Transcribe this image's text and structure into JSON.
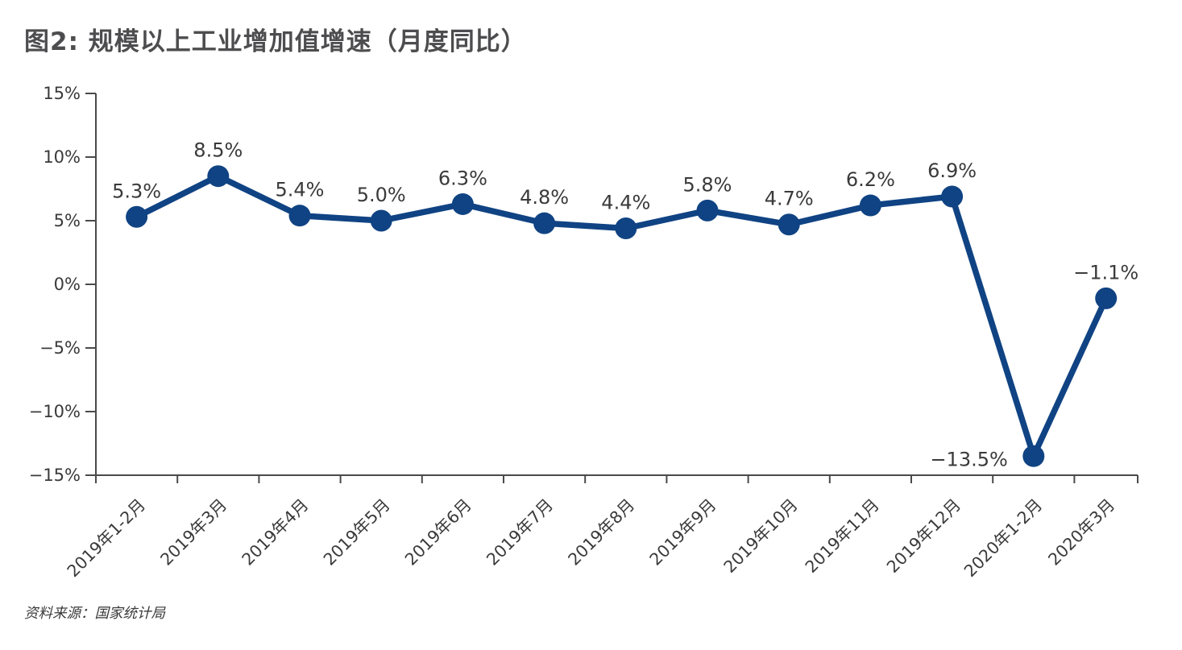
{
  "page": {
    "title": "图2: 规模以上工业增加值增速（月度同比）",
    "source": "资料来源：国家统计局"
  },
  "colors": {
    "line": "#104383",
    "marker": "#104383",
    "title_text": "#4d4d4f",
    "axis": "#4a4a4a",
    "tick_text": "#3a3a3a",
    "data_label_text": "#3a3a3a"
  },
  "chart_data": {
    "type": "line",
    "title": "规模以上工业增加值增速（月度同比）",
    "categories": [
      "2019年1-2月",
      "2019年3月",
      "2019年4月",
      "2019年5月",
      "2019年6月",
      "2019年7月",
      "2019年8月",
      "2019年9月",
      "2019年10月",
      "2019年11月",
      "2019年12月",
      "2020年1-2月",
      "2020年3月"
    ],
    "values": [
      5.3,
      8.5,
      5.4,
      5.0,
      6.3,
      4.8,
      4.4,
      5.8,
      4.7,
      6.2,
      6.9,
      -13.5,
      -1.1
    ],
    "point_labels": [
      "5.3%",
      "8.5%",
      "5.4%",
      "5.0%",
      "6.3%",
      "4.8%",
      "4.4%",
      "5.8%",
      "4.7%",
      "6.2%",
      "6.9%",
      "−13.5%",
      "−1.1%"
    ],
    "label_positions": [
      "above",
      "above",
      "above",
      "above",
      "above",
      "above",
      "above",
      "above",
      "above",
      "above",
      "above",
      "left",
      "above"
    ],
    "xlabel": "",
    "ylabel": "",
    "ylim": [
      -15,
      15
    ],
    "yticks": [
      15,
      10,
      5,
      0,
      -5,
      -10,
      -15
    ],
    "ytick_labels": [
      "15%",
      "10%",
      "5%",
      "0%",
      "−5%",
      "−10%",
      "−15%"
    ],
    "grid": false,
    "legend": false,
    "marker": "circle"
  }
}
